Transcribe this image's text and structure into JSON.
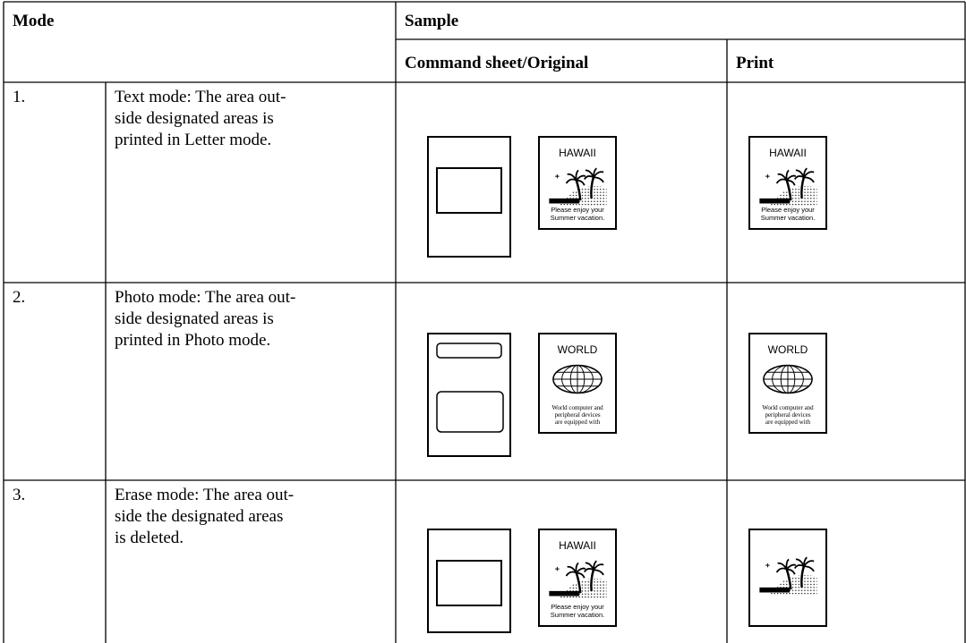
{
  "table": {
    "header": {
      "mode": "Mode",
      "sample": "Sample",
      "original": "Command sheet/Original",
      "print": "Print"
    },
    "rows": [
      {
        "number": "1.",
        "description": [
          "Text mode: The area out-",
          "side designated areas is",
          "printed in Letter mode."
        ],
        "original": {
          "title": "HAWAII",
          "caption": [
            "Please enjoy your",
            "Summer vacation."
          ]
        },
        "print": {
          "title": "HAWAII",
          "caption": [
            "Please enjoy your",
            "Summer vacation."
          ]
        }
      },
      {
        "number": "2.",
        "description": [
          "Photo mode: The area out-",
          "side designated areas is",
          "printed in Photo mode."
        ],
        "original": {
          "title": "WORLD",
          "caption": [
            "World computer and",
            "peripheral devices",
            "are equipped with"
          ]
        },
        "print": {
          "title": "WORLD",
          "caption": [
            "World computer and",
            "peripheral devices",
            "are equipped with"
          ]
        }
      },
      {
        "number": "3.",
        "description": [
          "Erase mode: The area out-",
          "side the designated areas",
          "is deleted."
        ],
        "original": {
          "title": "HAWAII",
          "caption": [
            "Please enjoy your",
            "Summer vacation."
          ]
        }
      }
    ]
  }
}
